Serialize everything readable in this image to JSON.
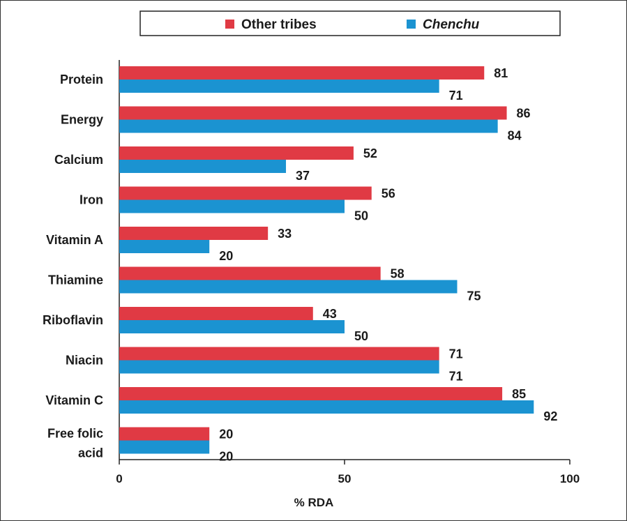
{
  "chart_data": {
    "type": "bar",
    "orientation": "horizontal",
    "categories": [
      "Protein",
      "Energy",
      "Calcium",
      "Iron",
      "Vitamin A",
      "Thiamine",
      "Riboflavin",
      "Niacin",
      "Vitamin C",
      "Free folic acid"
    ],
    "series": [
      {
        "name": "Other tribes",
        "color": "#e03a44",
        "values": [
          81,
          86,
          52,
          56,
          33,
          58,
          43,
          71,
          85,
          20
        ]
      },
      {
        "name": "Chenchu",
        "color": "#1b93d1",
        "values": [
          71,
          84,
          37,
          50,
          20,
          75,
          50,
          71,
          92,
          20
        ]
      }
    ],
    "xlabel": "% RDA",
    "xlim": [
      0,
      100
    ],
    "xticks": [
      "0",
      "50",
      "100"
    ],
    "legend_position": "top",
    "grid": false
  }
}
